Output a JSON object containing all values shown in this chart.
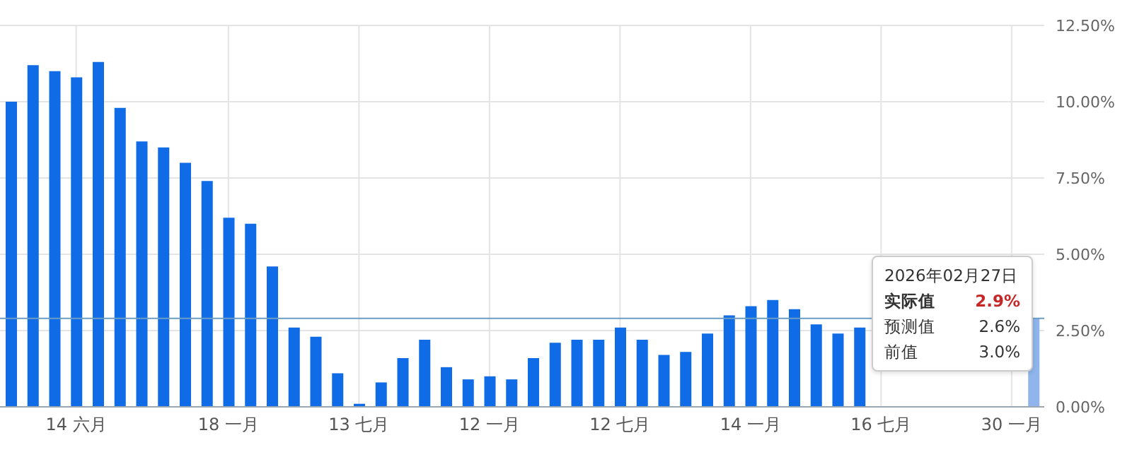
{
  "chart_data": {
    "type": "bar",
    "categories": [
      null,
      null,
      null,
      "14 六月",
      null,
      null,
      null,
      null,
      null,
      null,
      "18 一月",
      null,
      null,
      null,
      null,
      null,
      "13 七月",
      null,
      null,
      null,
      null,
      null,
      "12 一月",
      null,
      null,
      null,
      null,
      null,
      "12 七月",
      null,
      null,
      null,
      null,
      null,
      "14 一月",
      null,
      null,
      null,
      null,
      null,
      "16 七月",
      null,
      null,
      null,
      null,
      null,
      "30 一月",
      null
    ],
    "values": [
      10.0,
      11.2,
      11.0,
      10.8,
      11.3,
      9.8,
      8.7,
      8.5,
      8.0,
      7.4,
      6.2,
      6.0,
      4.6,
      2.6,
      2.3,
      1.1,
      0.1,
      0.8,
      1.6,
      2.2,
      1.3,
      0.9,
      1.0,
      0.9,
      1.6,
      2.1,
      2.2,
      2.2,
      2.6,
      2.2,
      1.7,
      1.8,
      2.4,
      3.0,
      3.3,
      3.5,
      3.2,
      2.7,
      2.4,
      2.6,
      null,
      null,
      null,
      null,
      null,
      null,
      null,
      2.9
    ],
    "colors": [
      "#0f6ce6",
      "#0f6ce6",
      "#0f6ce6",
      "#0f6ce6",
      "#0f6ce6",
      "#0f6ce6",
      "#0f6ce6",
      "#0f6ce6",
      "#0f6ce6",
      "#0f6ce6",
      "#0f6ce6",
      "#0f6ce6",
      "#0f6ce6",
      "#0f6ce6",
      "#0f6ce6",
      "#0f6ce6",
      "#0f6ce6",
      "#0f6ce6",
      "#0f6ce6",
      "#0f6ce6",
      "#0f6ce6",
      "#0f6ce6",
      "#0f6ce6",
      "#0f6ce6",
      "#0f6ce6",
      "#0f6ce6",
      "#0f6ce6",
      "#0f6ce6",
      "#0f6ce6",
      "#0f6ce6",
      "#0f6ce6",
      "#0f6ce6",
      "#0f6ce6",
      "#0f6ce6",
      "#0f6ce6",
      "#0f6ce6",
      "#0f6ce6",
      "#0f6ce6",
      "#0f6ce6",
      "#0f6ce6",
      "#0f6ce6",
      "#0f6ce6",
      "#0f6ce6",
      "#0f6ce6",
      "#0f6ce6",
      "#0f6ce6",
      "#0f6ce6",
      "#8fb5ec"
    ],
    "ylim": [
      0,
      12.5
    ],
    "yticks": [
      {
        "value": 0,
        "label": "0.00%"
      },
      {
        "value": 2.5,
        "label": "2.50%"
      },
      {
        "value": 5,
        "label": "5.00%"
      },
      {
        "value": 7.5,
        "label": "7.50%"
      },
      {
        "value": 10,
        "label": "10.00%"
      },
      {
        "value": 12.5,
        "label": "12.50%"
      }
    ],
    "ref_lines": [
      {
        "axis": "y",
        "value": 2.9,
        "color": "#6b9cc4"
      }
    ],
    "annotations": [
      "2026年02月27日",
      "实际值",
      "2.9%",
      "预测值",
      "2.6%",
      "前值",
      "3.0%"
    ],
    "grid": true
  }
}
